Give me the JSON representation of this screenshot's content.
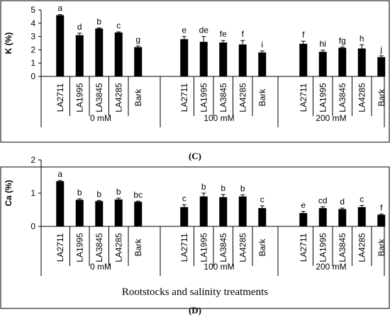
{
  "panels": [
    {
      "caption": "(C)",
      "chart_data": {
        "type": "bar",
        "ylabel": "K (%)",
        "xlabel": "",
        "ylim": [
          0,
          5
        ],
        "yticks": [
          0,
          1,
          2,
          3,
          4,
          5
        ],
        "grid": false,
        "groups": [
          "0 mM",
          "100 mM",
          "200 mM"
        ],
        "categories": [
          "LA2711",
          "LA1995",
          "LA3845",
          "LA4285",
          "Bark"
        ],
        "series": [
          {
            "group": "0 mM",
            "values": [
              4.6,
              3.1,
              3.6,
              3.3,
              2.2
            ],
            "errors": [
              0.05,
              0.15,
              0.05,
              0.05,
              0.08
            ],
            "letters": [
              "a",
              "d",
              "b",
              "c",
              "g"
            ]
          },
          {
            "group": "100 mM",
            "values": [
              2.8,
              2.6,
              2.55,
              2.4,
              1.8
            ],
            "errors": [
              0.2,
              0.4,
              0.15,
              0.3,
              0.12
            ],
            "letters": [
              "e",
              "de",
              "fe",
              "f",
              "i"
            ]
          },
          {
            "group": "200 mM",
            "values": [
              2.45,
              1.85,
              2.15,
              2.1,
              1.45
            ],
            "errors": [
              0.2,
              0.12,
              0.06,
              0.28,
              0.1
            ],
            "letters": [
              "f",
              "hi",
              "fg",
              "h",
              "j"
            ]
          }
        ]
      }
    },
    {
      "caption": "(D)",
      "chart_data": {
        "type": "bar",
        "ylabel": "Ca (%)",
        "xlabel": "Rootstocks and salinity treatments",
        "ylim": [
          0,
          2
        ],
        "yticks": [
          0,
          1,
          2
        ],
        "grid": false,
        "groups": [
          "0 mM",
          "100 mM",
          "200 mM"
        ],
        "categories": [
          "LA2711",
          "LA1995",
          "LA3845",
          "LA4285",
          "Bark"
        ],
        "series": [
          {
            "group": "0 mM",
            "values": [
              1.36,
              0.8,
              0.76,
              0.81,
              0.74
            ],
            "errors": [
              0.02,
              0.03,
              0.02,
              0.04,
              0.02
            ],
            "letters": [
              "a",
              "b",
              "b",
              "b",
              "bc"
            ]
          },
          {
            "group": "100 mM",
            "values": [
              0.58,
              0.9,
              0.88,
              0.9,
              0.55
            ],
            "errors": [
              0.07,
              0.1,
              0.08,
              0.05,
              0.07
            ],
            "letters": [
              "c",
              "b",
              "b",
              "b",
              "c"
            ]
          },
          {
            "group": "200 mM",
            "values": [
              0.4,
              0.55,
              0.52,
              0.58,
              0.35
            ],
            "errors": [
              0.05,
              0.04,
              0.03,
              0.05,
              0.02
            ],
            "letters": [
              "e",
              "cd",
              "d",
              "c",
              "f"
            ]
          }
        ]
      }
    }
  ]
}
